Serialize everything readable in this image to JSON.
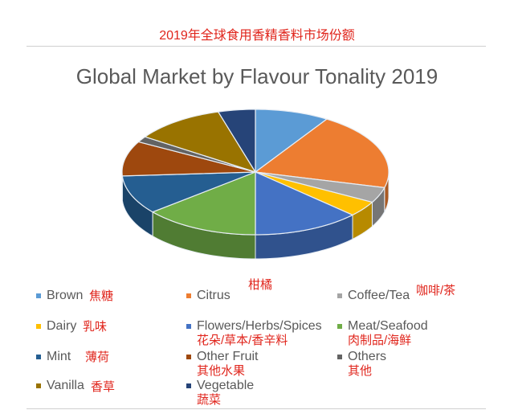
{
  "header_title": "2019年全球食用香精香料市场份额",
  "chart_data": {
    "type": "pie",
    "style": "3d",
    "title": "Global Market by Flavour Tonality 2019",
    "start": "top, clockwise",
    "unit": "%",
    "categories": [
      "Brown",
      "Citrus",
      "Coffee/Tea",
      "Dairy",
      "Flowers/Herbs/Spices",
      "Meat/Seafood",
      "Mint",
      "Other Fruit",
      "Others",
      "Vanilla",
      "Vegetable"
    ],
    "values": [
      9,
      20,
      4,
      4,
      13,
      14,
      10,
      9,
      1.5,
      11,
      4.5
    ],
    "colors": [
      "#5b9bd5",
      "#ed7d31",
      "#a5a5a5",
      "#ffc000",
      "#4472c4",
      "#70ad47",
      "#255e91",
      "#9e480e",
      "#636363",
      "#997300",
      "#264478"
    ],
    "legend_placement": "bottom",
    "annotations": [
      "焦糖",
      "柑橘",
      "咖啡/茶",
      "乳味",
      "花朵/草本/香辛料",
      "肉制品/海鲜",
      "薄荷",
      "其他水果",
      "其他",
      "香草",
      "蔬菜"
    ]
  }
}
